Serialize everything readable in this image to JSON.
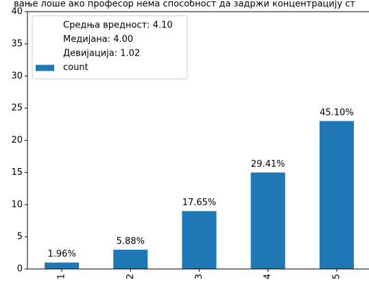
{
  "chart_data": {
    "type": "bar",
    "title": "вање лоше ако професор нема способност да задржи концентрацију ст",
    "categories": [
      "1",
      "2",
      "3",
      "4",
      "5"
    ],
    "series": [
      {
        "name": "count",
        "color": "#1f77b4",
        "values": [
          1,
          3,
          9,
          15,
          23
        ]
      }
    ],
    "value_labels": [
      "1.96%",
      "5.88%",
      "17.65%",
      "29.41%",
      "45.10%"
    ],
    "annotations": [
      "Средња вредност: 4.10",
      "Медијана: 4.00",
      "Девијација: 1.02"
    ],
    "ylim": [
      0,
      40
    ],
    "yticks": [
      0,
      5,
      10,
      15,
      20,
      25,
      30,
      35,
      40
    ],
    "legend": "upper left"
  }
}
